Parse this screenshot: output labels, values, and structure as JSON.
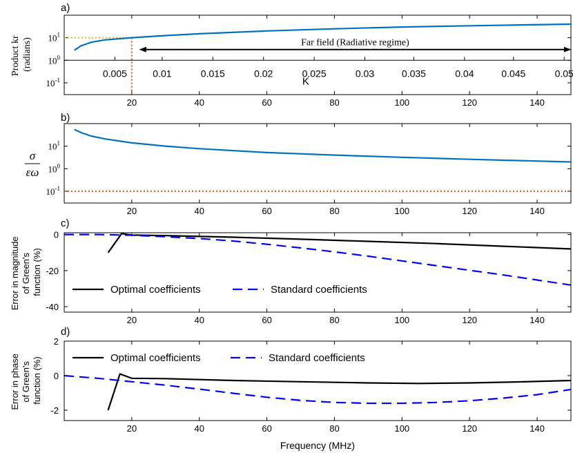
{
  "chart_data": [
    {
      "id": "a",
      "panel_label": "a)",
      "type": "line",
      "yscale": "log",
      "xlim": [
        0,
        150
      ],
      "ylim": [
        0.03,
        100
      ],
      "yticks": [
        {
          "v": 0.1,
          "b": "10",
          "e": "-1"
        },
        {
          "v": 1,
          "b": "10",
          "e": "0"
        },
        {
          "v": 10,
          "b": "10",
          "e": "1"
        }
      ],
      "xticks": [
        "20",
        "40",
        "60",
        "80",
        "100",
        "120",
        "140"
      ],
      "xtick_values": [
        20,
        40,
        60,
        80,
        100,
        120,
        140
      ],
      "ylabel": [
        "Product kr",
        "(radians)"
      ],
      "series": [
        {
          "name": "kr",
          "color": "#0072BD",
          "x": [
            3,
            5,
            8,
            12,
            20,
            30,
            40,
            60,
            80,
            100,
            120,
            150
          ],
          "y": [
            2.8,
            4.4,
            6.3,
            8.0,
            10.0,
            12.5,
            15.0,
            20.0,
            25.0,
            30.0,
            34.0,
            40.0
          ]
        }
      ],
      "guides": [
        {
          "kind": "hline",
          "y": 10,
          "x_from": 0,
          "x_to": 20,
          "color": "#EDB120",
          "style": "dotted"
        },
        {
          "kind": "vline",
          "x": 20,
          "y_from": 10,
          "y_to": 0.03,
          "color": "#D95319",
          "style": "dotted"
        }
      ],
      "secondary_axis": {
        "label": "K",
        "at_y": 1,
        "ticks": [
          "0.005",
          "0.01",
          "0.015",
          "0.02",
          "0.025",
          "0.03",
          "0.035",
          "0.04",
          "0.045",
          "0.05"
        ],
        "tick_x": [
          15,
          29,
          44,
          59,
          74,
          89,
          103.5,
          118.5,
          133,
          148
        ]
      },
      "annotation": {
        "text": "Far field (Radiative regime)",
        "y": 3.0,
        "x_from": 20,
        "x_to": 157
      }
    },
    {
      "id": "b",
      "panel_label": "b)",
      "type": "line",
      "yscale": "log",
      "xlim": [
        0,
        150
      ],
      "ylim": [
        0.03,
        100
      ],
      "yticks": [
        {
          "v": 0.1,
          "b": "10",
          "e": "-1"
        },
        {
          "v": 1,
          "b": "10",
          "e": "0"
        },
        {
          "v": 10,
          "b": "10",
          "e": "1"
        }
      ],
      "xticks": [
        "20",
        "40",
        "60",
        "80",
        "100",
        "120",
        "140"
      ],
      "xtick_values": [
        20,
        40,
        60,
        80,
        100,
        120,
        140
      ],
      "ylabel_fraction": {
        "num": "σ",
        "den": "εω"
      },
      "series": [
        {
          "name": "sigma_over_eps_omega",
          "color": "#0072BD",
          "x": [
            3,
            5,
            8,
            12,
            20,
            30,
            40,
            60,
            80,
            100,
            120,
            150
          ],
          "y": [
            55,
            40,
            28,
            21,
            14,
            10,
            7.7,
            5.2,
            4.0,
            3.2,
            2.6,
            2.0
          ]
        }
      ],
      "guides": [
        {
          "kind": "hline",
          "y": 0.1,
          "x_from": 0,
          "x_to": 150,
          "color": "#D95319",
          "style": "dotted"
        }
      ]
    },
    {
      "id": "c",
      "panel_label": "c)",
      "type": "line",
      "yscale": "linear",
      "xlim": [
        0,
        150
      ],
      "ylim": [
        -43,
        1
      ],
      "yticks": [
        {
          "v": 0,
          "t": "0"
        },
        {
          "v": -20,
          "t": "-20"
        },
        {
          "v": -40,
          "t": "-40"
        }
      ],
      "xticks": [
        "20",
        "40",
        "60",
        "80",
        "100",
        "120",
        "140"
      ],
      "xtick_values": [
        20,
        40,
        60,
        80,
        100,
        120,
        140
      ],
      "ylabel": [
        "Error in magnitude",
        "of Green's",
        "function (%)"
      ],
      "legend": {
        "entries": [
          "Optimal coefficients",
          "Standard coefficients"
        ],
        "placement": "lower-left"
      },
      "series": [
        {
          "name": "Optimal coefficients",
          "color": "#000000",
          "dash": "solid",
          "x": [
            13,
            17,
            20,
            30,
            50,
            70,
            90,
            110,
            130,
            150
          ],
          "y": [
            -10,
            0.5,
            -0.3,
            -0.6,
            -1.5,
            -2.6,
            -3.8,
            -5.0,
            -6.5,
            -8.0
          ]
        },
        {
          "name": "Standard coefficients",
          "color": "#0000FF",
          "dash": "dashed",
          "x": [
            0,
            10,
            20,
            30,
            40,
            50,
            60,
            70,
            80,
            90,
            100,
            110,
            120,
            130,
            140,
            150
          ],
          "y": [
            0,
            0,
            -0.4,
            -1.2,
            -2.2,
            -3.6,
            -5.4,
            -7.4,
            -9.6,
            -12.0,
            -14.6,
            -17.2,
            -19.8,
            -22.4,
            -25.2,
            -28.0
          ]
        }
      ]
    },
    {
      "id": "d",
      "panel_label": "d)",
      "type": "line",
      "yscale": "linear",
      "xlim": [
        0,
        150
      ],
      "ylim": [
        -2.6,
        2
      ],
      "yticks": [
        {
          "v": 2,
          "t": "2"
        },
        {
          "v": 0,
          "t": "0"
        },
        {
          "v": -2,
          "t": "-2"
        }
      ],
      "xticks": [
        "20",
        "40",
        "60",
        "80",
        "100",
        "120",
        "140"
      ],
      "xtick_values": [
        20,
        40,
        60,
        80,
        100,
        120,
        140
      ],
      "ylabel": [
        "Error in phase",
        "of Green's",
        "function (%)"
      ],
      "xlabel": "Frequency (MHz)",
      "legend": {
        "entries": [
          "Optimal coefficients",
          "Standard coefficients"
        ],
        "placement": "top-left"
      },
      "series": [
        {
          "name": "Optimal coefficients",
          "color": "#000000",
          "dash": "solid",
          "x": [
            13,
            16.5,
            20,
            30,
            50,
            70,
            90,
            105,
            120,
            135,
            150
          ],
          "y": [
            -2.0,
            0.1,
            -0.15,
            -0.17,
            -0.28,
            -0.35,
            -0.42,
            -0.45,
            -0.42,
            -0.36,
            -0.28
          ]
        },
        {
          "name": "Standard coefficients",
          "color": "#0000FF",
          "dash": "dashed",
          "x": [
            0,
            10,
            20,
            30,
            40,
            50,
            60,
            70,
            80,
            90,
            100,
            110,
            120,
            130,
            140,
            150
          ],
          "y": [
            0,
            -0.15,
            -0.35,
            -0.55,
            -0.78,
            -1.02,
            -1.25,
            -1.43,
            -1.55,
            -1.6,
            -1.6,
            -1.55,
            -1.45,
            -1.3,
            -1.1,
            -0.8
          ]
        }
      ]
    }
  ]
}
